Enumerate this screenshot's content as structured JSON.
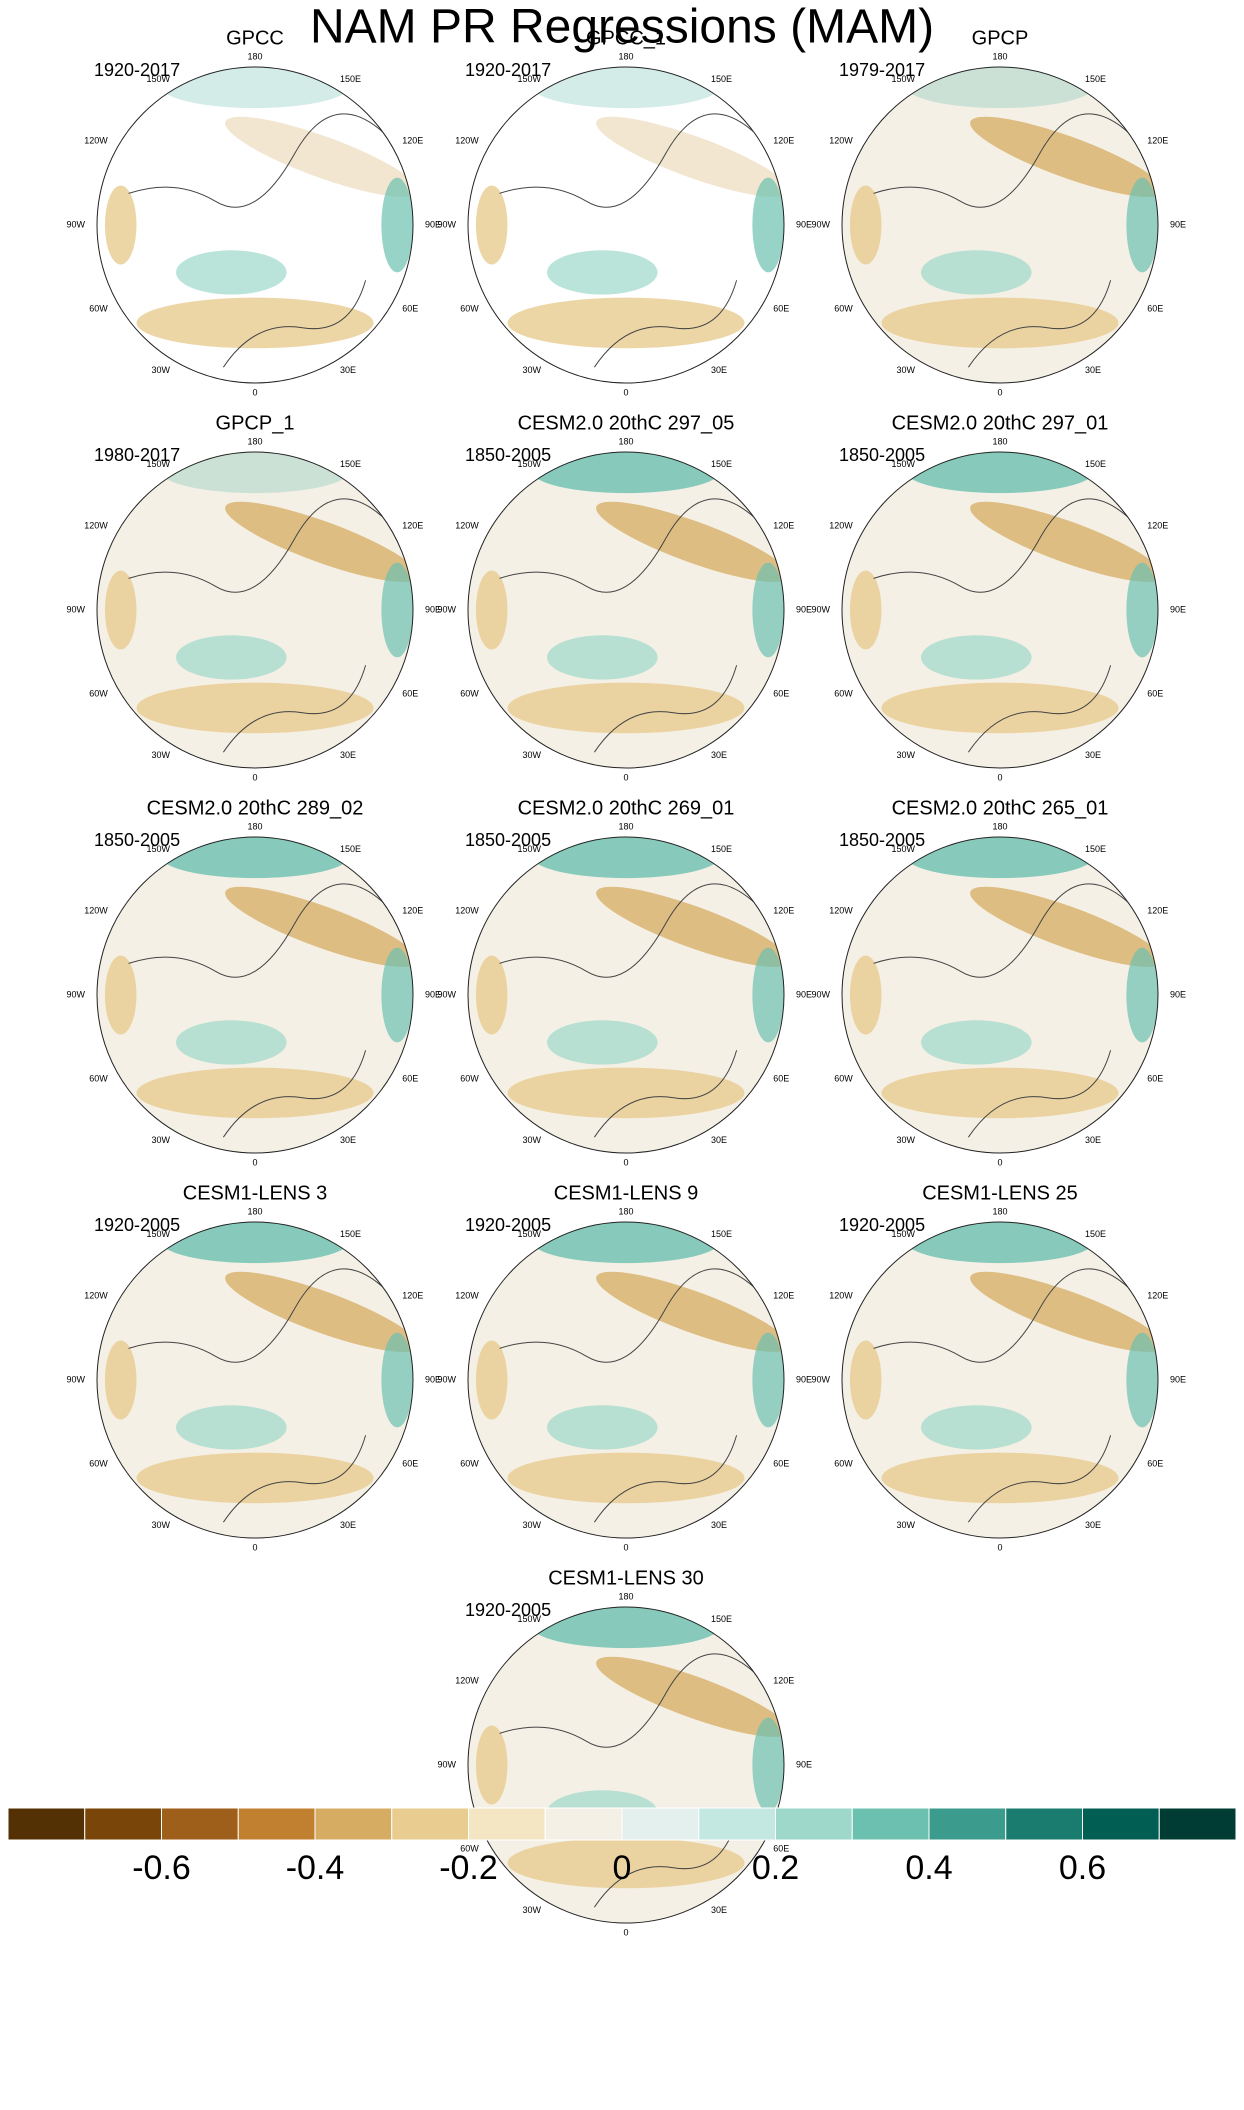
{
  "title": "NAM PR Regressions (MAM)",
  "lon_labels": [
    "180",
    "150E",
    "120E",
    "90E",
    "60E",
    "30E",
    "0",
    "30W",
    "60W",
    "90W",
    "120W",
    "150W"
  ],
  "panels": [
    {
      "title": "GPCC",
      "period": "1920-2017"
    },
    {
      "title": "GPCC_1",
      "period": "1920-2017"
    },
    {
      "title": "GPCP",
      "period": "1979-2017"
    },
    {
      "title": "GPCP_1",
      "period": "1980-2017"
    },
    {
      "title": "CESM2.0 20thC 297_05",
      "period": "1850-2005"
    },
    {
      "title": "CESM2.0 20thC 297_01",
      "period": "1850-2005"
    },
    {
      "title": "CESM2.0 20thC 289_02",
      "period": "1850-2005"
    },
    {
      "title": "CESM2.0 20thC 269_01",
      "period": "1850-2005"
    },
    {
      "title": "CESM2.0 20thC 265_01",
      "period": "1850-2005"
    },
    {
      "title": "CESM1-LENS 3",
      "period": "1920-2005"
    },
    {
      "title": "CESM1-LENS 9",
      "period": "1920-2005"
    },
    {
      "title": "CESM1-LENS 25",
      "period": "1920-2005"
    },
    {
      "title": "CESM1-LENS 30",
      "period": "1920-2005"
    }
  ],
  "colorbar": {
    "colors": [
      "#543005",
      "#7a4509",
      "#9e5f1a",
      "#c08030",
      "#d5ac62",
      "#e8cc90",
      "#f5e6c3",
      "#f5f0e6",
      "#e3f0ee",
      "#c3e8e1",
      "#9dd8cb",
      "#6cc0b0",
      "#3b9c8e",
      "#1a7c6f",
      "#005e52",
      "#003c33"
    ],
    "lim": [
      -0.8,
      0.8
    ],
    "ticks": [
      -0.6,
      -0.4,
      -0.2,
      0,
      0.2,
      0.4,
      0.6
    ]
  }
}
